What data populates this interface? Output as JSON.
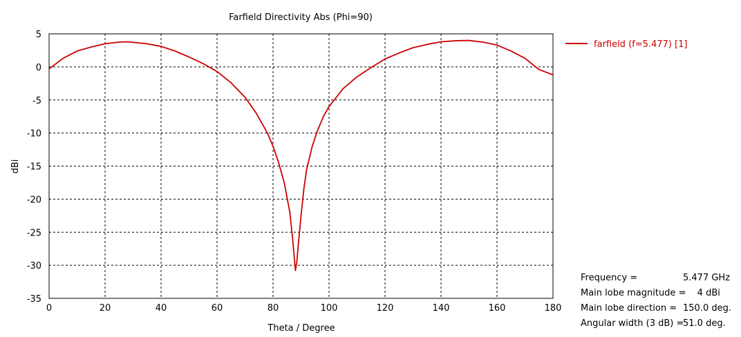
{
  "chart_data": {
    "type": "line",
    "title": "Farfield Directivity Abs (Phi=90)",
    "xlabel": "Theta / Degree",
    "ylabel": "dBi",
    "xlim": [
      0,
      180
    ],
    "ylim": [
      -35,
      5
    ],
    "xticks": [
      0,
      20,
      40,
      60,
      80,
      100,
      120,
      140,
      160,
      180
    ],
    "yticks": [
      5,
      0,
      -5,
      -10,
      -15,
      -20,
      -25,
      -30,
      -35
    ],
    "grid": true,
    "legend_position": "top-right",
    "series": [
      {
        "name": "farfield (f=5.477) [1]",
        "color": "#cc0000",
        "x": [
          0,
          5,
          10,
          15,
          20,
          25,
          28,
          35,
          40,
          45,
          50,
          55,
          60,
          65,
          70,
          74,
          78,
          80,
          82,
          84,
          86,
          87,
          88,
          88.5,
          89,
          90,
          91,
          92,
          94,
          96,
          98,
          100,
          105,
          110,
          115,
          120,
          125,
          130,
          135,
          140,
          145,
          150,
          155,
          160,
          165,
          170,
          175,
          180
        ],
        "y": [
          -0.3,
          1.3,
          2.4,
          3.0,
          3.5,
          3.75,
          3.8,
          3.5,
          3.1,
          2.4,
          1.5,
          0.5,
          -0.7,
          -2.4,
          -4.6,
          -7.0,
          -10.0,
          -12.0,
          -14.5,
          -17.5,
          -22.0,
          -26.0,
          -30.8,
          -29.5,
          -27.0,
          -22.5,
          -18.5,
          -15.5,
          -12.0,
          -9.5,
          -7.5,
          -6.0,
          -3.3,
          -1.5,
          -0.1,
          1.2,
          2.1,
          2.9,
          3.4,
          3.8,
          3.95,
          4.0,
          3.75,
          3.3,
          2.4,
          1.3,
          -0.4,
          -1.2
        ]
      }
    ]
  },
  "legend": {
    "label": "farfield (f=5.477) [1]"
  },
  "info": {
    "frequency_label": "Frequency = ",
    "frequency_value": "5.477 GHz",
    "magnitude_label": "Main lobe magnitude = ",
    "magnitude_value": "     4 dBi",
    "direction_label": "Main lobe direction = ",
    "direction_value": "150.0 deg.",
    "width_label": "Angular width (3 dB) = ",
    "width_value": "51.0 deg."
  },
  "colors": {
    "curve": "#cc0000",
    "grid": "#000000",
    "axis": "#000000"
  }
}
